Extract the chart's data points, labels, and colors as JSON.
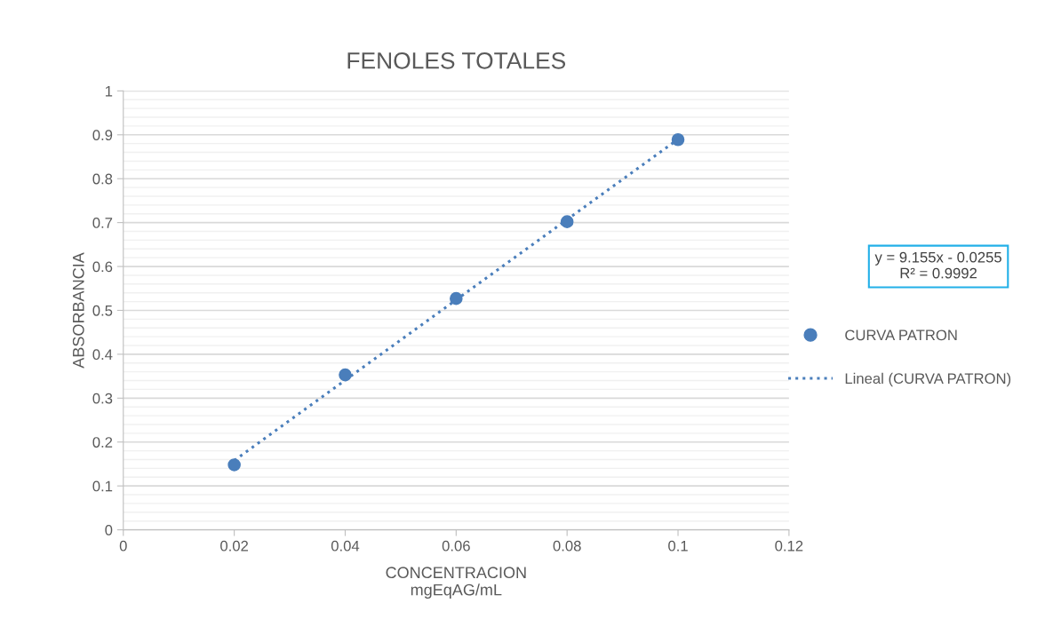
{
  "chart_data": {
    "type": "scatter",
    "title": "FENOLES TOTALES",
    "xlabel": "CONCENTRACION\nmgEqAG/mL",
    "ylabel": "ABSORBANCIA",
    "annotations": [
      "y = 9.155x - 0.0255\nR² = 0.9992"
    ],
    "series": [
      {
        "name": "CURVA PATRON",
        "color": "#4a7ebb",
        "marker": "circle",
        "x": [
          0.02,
          0.04,
          0.06,
          0.08,
          0.1
        ],
        "values": [
          0.148,
          0.353,
          0.527,
          0.702,
          0.889
        ]
      },
      {
        "name": "Lineal (CURVA PATRON)",
        "type": "line",
        "color": "#4a7ebb",
        "line_style": "dotted",
        "marker": "none",
        "x": [
          0.02,
          0.1
        ],
        "values": [
          0.158,
          0.89
        ]
      }
    ],
    "xlim": [
      0,
      0.12
    ],
    "xticks": [
      0,
      0.02,
      0.04,
      0.06,
      0.08,
      0.1,
      0.12
    ],
    "ylim": [
      0,
      1
    ],
    "yticks": [
      0,
      0.1,
      0.2,
      0.3,
      0.4,
      0.5,
      0.6,
      0.7,
      0.8,
      0.9,
      1
    ],
    "grid": "y",
    "legend": "right"
  }
}
